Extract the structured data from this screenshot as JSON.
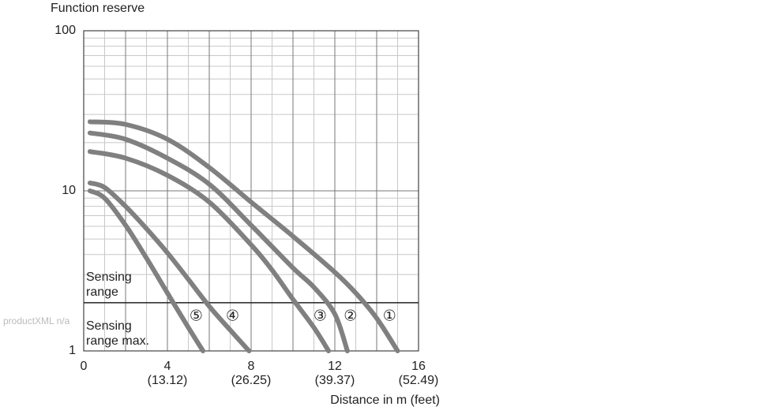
{
  "chart_data": {
    "type": "line",
    "y_label": "Function reserve",
    "x_label": "Distance in m (feet)",
    "watermark": "productXML n/a",
    "xlim": [
      0,
      16
    ],
    "xticks": [
      0,
      4,
      8,
      12,
      16
    ],
    "xtick_sublabels": [
      null,
      "(13.12)",
      "(26.25)",
      "(39.37)",
      "(52.49)"
    ],
    "ylim": [
      1,
      100
    ],
    "yticks": [
      1,
      10,
      100
    ],
    "log_y": true,
    "grid": true,
    "threshold": 2,
    "annotations": [
      {
        "lines": [
          "Sensing",
          "range"
        ]
      },
      {
        "lines": [
          "Sensing",
          "range max."
        ]
      }
    ],
    "series": [
      {
        "name": "①",
        "color": "#808080",
        "x": [
          0.3,
          2,
          4,
          6,
          8,
          10,
          12,
          13,
          14,
          15
        ],
        "values": [
          27,
          26,
          21,
          14,
          8.5,
          5.2,
          3.1,
          2.3,
          1.6,
          1
        ]
      },
      {
        "name": "②",
        "color": "#808080",
        "x": [
          0.3,
          2,
          4,
          6,
          8,
          10,
          11,
          12,
          12.6
        ],
        "values": [
          23,
          21,
          16,
          11,
          6.1,
          3.3,
          2.5,
          1.7,
          1
        ]
      },
      {
        "name": "③",
        "color": "#808080",
        "x": [
          0.3,
          2,
          4,
          6,
          8,
          9,
          10,
          11,
          11.7
        ],
        "values": [
          17.6,
          16,
          12.5,
          8.5,
          4.6,
          3.2,
          2.1,
          1.4,
          1
        ]
      },
      {
        "name": "④",
        "color": "#808080",
        "x": [
          0.3,
          1,
          2,
          3,
          4,
          5,
          6,
          7,
          7.9
        ],
        "values": [
          11.2,
          10.5,
          8,
          5.8,
          4.1,
          2.8,
          1.9,
          1.35,
          1
        ]
      },
      {
        "name": "⑤",
        "color": "#808080",
        "x": [
          0.3,
          1,
          2,
          3,
          4,
          5,
          5.7
        ],
        "values": [
          10,
          9,
          6.1,
          3.8,
          2.3,
          1.4,
          1
        ]
      }
    ]
  }
}
